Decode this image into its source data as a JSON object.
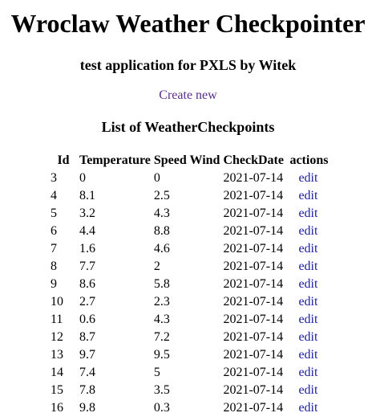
{
  "header": {
    "title": "Wroclaw Weather Checkpointer",
    "subtitle": "test application for PXLS by Witek",
    "create_link": "Create new",
    "list_heading": "List of WeatherCheckpoints"
  },
  "table": {
    "columns": [
      "Id",
      "Temperature",
      "Speed Wind",
      "CheckDate",
      "actions"
    ],
    "rows": [
      {
        "id": "3",
        "temperature": "0",
        "speed_wind": "0",
        "check_date": "2021-07-14",
        "action": "edit"
      },
      {
        "id": "4",
        "temperature": "8.1",
        "speed_wind": "2.5",
        "check_date": "2021-07-14",
        "action": "edit"
      },
      {
        "id": "5",
        "temperature": "3.2",
        "speed_wind": "4.3",
        "check_date": "2021-07-14",
        "action": "edit"
      },
      {
        "id": "6",
        "temperature": "4.4",
        "speed_wind": "8.8",
        "check_date": "2021-07-14",
        "action": "edit"
      },
      {
        "id": "7",
        "temperature": "1.6",
        "speed_wind": "4.6",
        "check_date": "2021-07-14",
        "action": "edit"
      },
      {
        "id": "8",
        "temperature": "7.7",
        "speed_wind": "2",
        "check_date": "2021-07-14",
        "action": "edit"
      },
      {
        "id": "9",
        "temperature": "8.6",
        "speed_wind": "5.8",
        "check_date": "2021-07-14",
        "action": "edit"
      },
      {
        "id": "10",
        "temperature": "2.7",
        "speed_wind": "2.3",
        "check_date": "2021-07-14",
        "action": "edit"
      },
      {
        "id": "11",
        "temperature": "0.6",
        "speed_wind": "4.3",
        "check_date": "2021-07-14",
        "action": "edit"
      },
      {
        "id": "12",
        "temperature": "8.7",
        "speed_wind": "7.2",
        "check_date": "2021-07-14",
        "action": "edit"
      },
      {
        "id": "13",
        "temperature": "9.7",
        "speed_wind": "9.5",
        "check_date": "2021-07-14",
        "action": "edit"
      },
      {
        "id": "14",
        "temperature": "7.4",
        "speed_wind": "5",
        "check_date": "2021-07-14",
        "action": "edit"
      },
      {
        "id": "15",
        "temperature": "7.8",
        "speed_wind": "3.5",
        "check_date": "2021-07-14",
        "action": "edit"
      },
      {
        "id": "16",
        "temperature": "9.8",
        "speed_wind": "0.3",
        "check_date": "2021-07-14",
        "action": "edit"
      }
    ]
  },
  "colors": {
    "visited_link": "#5b2d8c",
    "link": "#1a1aa6",
    "text": "#000000",
    "background": "#ffffff"
  }
}
